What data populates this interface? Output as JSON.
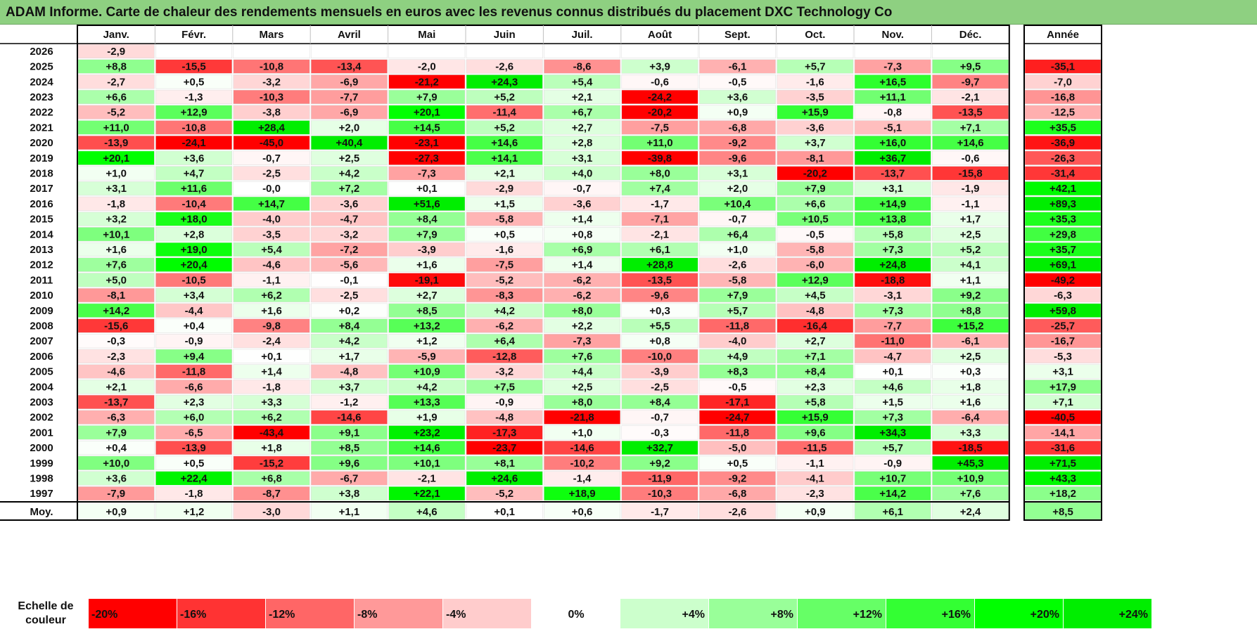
{
  "title": "ADAM Informe. Carte de chaleur des rendements mensuels en euros avec les revenus connus distribués du placement DXC Technology Co",
  "chart_data": {
    "type": "heatmap",
    "title": "ADAM Informe. Carte de chaleur des rendements mensuels en euros avec les revenus connus distribués du placement DXC Technology Co",
    "months": [
      "Janv.",
      "Févr.",
      "Mars",
      "Avril",
      "Mai",
      "Juin",
      "Juil.",
      "Août",
      "Sept.",
      "Oct.",
      "Nov.",
      "Déc."
    ],
    "year_header": "Année",
    "rows": [
      {
        "year": "2026",
        "values": [
          "-2,9",
          "",
          "",
          "",
          "",
          "",
          "",
          "",
          "",
          "",
          "",
          ""
        ],
        "annual": ""
      },
      {
        "year": "2025",
        "values": [
          "+8,8",
          "-15,5",
          "-10,8",
          "-13,4",
          "-2,0",
          "-2,6",
          "-8,6",
          "+3,9",
          "-6,1",
          "+5,7",
          "-7,3",
          "+9,5"
        ],
        "annual": "-35,1"
      },
      {
        "year": "2024",
        "values": [
          "-2,7",
          "+0,5",
          "-3,2",
          "-6,9",
          "-21,2",
          "+24,3",
          "+5,4",
          "-0,6",
          "-0,5",
          "-1,6",
          "+16,5",
          "-9,7"
        ],
        "annual": "-7,0"
      },
      {
        "year": "2023",
        "values": [
          "+6,6",
          "-1,3",
          "-10,3",
          "-7,7",
          "+7,9",
          "+5,2",
          "+2,1",
          "-24,2",
          "+3,6",
          "-3,5",
          "+11,1",
          "-2,1"
        ],
        "annual": "-16,8"
      },
      {
        "year": "2022",
        "values": [
          "-5,2",
          "+12,9",
          "-3,8",
          "-6,9",
          "+20,1",
          "-11,4",
          "+6,7",
          "-20,2",
          "+0,9",
          "+15,9",
          "-0,8",
          "-13,5"
        ],
        "annual": "-12,5"
      },
      {
        "year": "2021",
        "values": [
          "+11,0",
          "-10,8",
          "+28,4",
          "+2,0",
          "+14,5",
          "+5,2",
          "+2,7",
          "-7,5",
          "-6,8",
          "-3,6",
          "-5,1",
          "+7,1"
        ],
        "annual": "+35,5"
      },
      {
        "year": "2020",
        "values": [
          "-13,9",
          "-24,1",
          "-45,0",
          "+40,4",
          "-23,1",
          "+14,6",
          "+2,8",
          "+11,0",
          "-9,2",
          "+3,7",
          "+16,0",
          "+14,6"
        ],
        "annual": "-36,9"
      },
      {
        "year": "2019",
        "values": [
          "+20,1",
          "+3,6",
          "-0,7",
          "+2,5",
          "-27,3",
          "+14,1",
          "+3,1",
          "-39,8",
          "-9,6",
          "-8,1",
          "+36,7",
          "-0,6"
        ],
        "annual": "-26,3"
      },
      {
        "year": "2018",
        "values": [
          "+1,0",
          "+4,7",
          "-2,5",
          "+4,2",
          "-7,3",
          "+2,1",
          "+4,0",
          "+8,0",
          "+3,1",
          "-20,2",
          "-13,7",
          "-15,8"
        ],
        "annual": "-31,4"
      },
      {
        "year": "2017",
        "values": [
          "+3,1",
          "+11,6",
          "-0,0",
          "+7,2",
          "+0,1",
          "-2,9",
          "-0,7",
          "+7,4",
          "+2,0",
          "+7,9",
          "+3,1",
          "-1,9"
        ],
        "annual": "+42,1"
      },
      {
        "year": "2016",
        "values": [
          "-1,8",
          "-10,4",
          "+14,7",
          "-3,6",
          "+51,6",
          "+1,5",
          "-3,6",
          "-1,7",
          "+10,4",
          "+6,6",
          "+14,9",
          "-1,1"
        ],
        "annual": "+89,3"
      },
      {
        "year": "2015",
        "values": [
          "+3,2",
          "+18,0",
          "-4,0",
          "-4,7",
          "+8,4",
          "-5,8",
          "+1,4",
          "-7,1",
          "-0,7",
          "+10,5",
          "+13,8",
          "+1,7"
        ],
        "annual": "+35,3"
      },
      {
        "year": "2014",
        "values": [
          "+10,1",
          "+2,8",
          "-3,5",
          "-3,2",
          "+7,9",
          "+0,5",
          "+0,8",
          "-2,1",
          "+6,4",
          "-0,5",
          "+5,8",
          "+2,5"
        ],
        "annual": "+29,8"
      },
      {
        "year": "2013",
        "values": [
          "+1,6",
          "+19,0",
          "+5,4",
          "-7,2",
          "-3,9",
          "-1,6",
          "+6,9",
          "+6,1",
          "+1,0",
          "-5,8",
          "+7,3",
          "+5,2"
        ],
        "annual": "+35,7"
      },
      {
        "year": "2012",
        "values": [
          "+7,6",
          "+20,4",
          "-4,6",
          "-5,6",
          "+1,6",
          "-7,5",
          "+1,4",
          "+28,8",
          "-2,6",
          "-6,0",
          "+24,8",
          "+4,1"
        ],
        "annual": "+69,1"
      },
      {
        "year": "2011",
        "values": [
          "+5,0",
          "-10,5",
          "-1,1",
          "-0,1",
          "-19,1",
          "-5,2",
          "-6,2",
          "-13,5",
          "-5,8",
          "+12,9",
          "-18,8",
          "+1,1"
        ],
        "annual": "-49,2"
      },
      {
        "year": "2010",
        "values": [
          "-8,1",
          "+3,4",
          "+6,2",
          "-2,5",
          "+2,7",
          "-8,3",
          "-6,2",
          "-9,6",
          "+7,9",
          "+4,5",
          "-3,1",
          "+9,2"
        ],
        "annual": "-6,3"
      },
      {
        "year": "2009",
        "values": [
          "+14,2",
          "-4,4",
          "+1,6",
          "+0,2",
          "+8,5",
          "+4,2",
          "+8,0",
          "+0,3",
          "+5,7",
          "-4,8",
          "+7,3",
          "+8,8"
        ],
        "annual": "+59,8"
      },
      {
        "year": "2008",
        "values": [
          "-15,6",
          "+0,4",
          "-9,8",
          "+8,4",
          "+13,2",
          "-6,2",
          "+2,2",
          "+5,5",
          "-11,8",
          "-16,4",
          "-7,7",
          "+15,2"
        ],
        "annual": "-25,7"
      },
      {
        "year": "2007",
        "values": [
          "-0,3",
          "-0,9",
          "-2,4",
          "+4,2",
          "+1,2",
          "+6,4",
          "-7,3",
          "+0,8",
          "-4,0",
          "+2,7",
          "-11,0",
          "-6,1"
        ],
        "annual": "-16,7"
      },
      {
        "year": "2006",
        "values": [
          "-2,3",
          "+9,4",
          "+0,1",
          "+1,7",
          "-5,9",
          "-12,8",
          "+7,6",
          "-10,0",
          "+4,9",
          "+7,1",
          "-4,7",
          "+2,5"
        ],
        "annual": "-5,3"
      },
      {
        "year": "2005",
        "values": [
          "-4,6",
          "-11,8",
          "+1,4",
          "-4,8",
          "+10,9",
          "-3,2",
          "+4,4",
          "-3,9",
          "+8,3",
          "+8,4",
          "+0,1",
          "+0,3"
        ],
        "annual": "+3,1"
      },
      {
        "year": "2004",
        "values": [
          "+2,1",
          "-6,6",
          "-1,8",
          "+3,7",
          "+4,2",
          "+7,5",
          "+2,5",
          "-2,5",
          "-0,5",
          "+2,3",
          "+4,6",
          "+1,8"
        ],
        "annual": "+17,9"
      },
      {
        "year": "2003",
        "values": [
          "-13,7",
          "+2,3",
          "+3,3",
          "-1,2",
          "+13,3",
          "-0,9",
          "+8,0",
          "+8,4",
          "-17,1",
          "+5,8",
          "+1,5",
          "+1,6"
        ],
        "annual": "+7,1"
      },
      {
        "year": "2002",
        "values": [
          "-6,3",
          "+6,0",
          "+6,2",
          "-14,6",
          "+1,9",
          "-4,8",
          "-21,8",
          "-0,7",
          "-24,7",
          "+15,9",
          "+7,3",
          "-6,4"
        ],
        "annual": "-40,5"
      },
      {
        "year": "2001",
        "values": [
          "+7,9",
          "-6,5",
          "-43,4",
          "+9,1",
          "+23,2",
          "-17,3",
          "+1,0",
          "-0,3",
          "-11,8",
          "+9,6",
          "+34,3",
          "+3,3"
        ],
        "annual": "-14,1"
      },
      {
        "year": "2000",
        "values": [
          "+0,4",
          "-13,9",
          "+1,8",
          "+8,5",
          "+14,6",
          "-23,7",
          "-14,6",
          "+32,7",
          "-5,0",
          "-11,5",
          "+5,7",
          "-18,5"
        ],
        "annual": "-31,6"
      },
      {
        "year": "1999",
        "values": [
          "+10,0",
          "+0,5",
          "-15,2",
          "+9,6",
          "+10,1",
          "+8,1",
          "-10,2",
          "+9,2",
          "+0,5",
          "-1,1",
          "-0,9",
          "+45,3"
        ],
        "annual": "+71,5"
      },
      {
        "year": "1998",
        "values": [
          "+3,6",
          "+22,4",
          "+6,8",
          "-6,7",
          "-2,1",
          "+24,6",
          "-1,4",
          "-11,9",
          "-9,2",
          "-4,1",
          "+10,7",
          "+10,9"
        ],
        "annual": "+43,3"
      },
      {
        "year": "1997",
        "values": [
          "-7,9",
          "-1,8",
          "-8,7",
          "+3,8",
          "+22,1",
          "-5,2",
          "+18,9",
          "-10,3",
          "-6,8",
          "-2,3",
          "+14,2",
          "+7,6"
        ],
        "annual": "+18,2"
      }
    ],
    "average": {
      "label": "Moy.",
      "values": [
        "+0,9",
        "+1,2",
        "-3,0",
        "+1,1",
        "+4,6",
        "+0,1",
        "+0,6",
        "-1,7",
        "-2,6",
        "+0,9",
        "+6,1",
        "+2,4"
      ],
      "annual": "+8,5"
    },
    "color_scale": {
      "label": "Echelle de couleur",
      "steps": [
        {
          "label": "-20%",
          "value": -20,
          "color": "#ff0000"
        },
        {
          "label": "-16%",
          "value": -16,
          "color": "#ff3333"
        },
        {
          "label": "-12%",
          "value": -12,
          "color": "#ff6666"
        },
        {
          "label": "-8%",
          "value": -8,
          "color": "#ff9999"
        },
        {
          "label": "-4%",
          "value": -4,
          "color": "#ffcccc"
        },
        {
          "label": "0%",
          "value": 0,
          "color": "#ffffff"
        },
        {
          "label": "+4%",
          "value": 4,
          "color": "#ccffcc"
        },
        {
          "label": "+8%",
          "value": 8,
          "color": "#99ff99"
        },
        {
          "label": "+12%",
          "value": 12,
          "color": "#66ff66"
        },
        {
          "label": "+16%",
          "value": 16,
          "color": "#33ff33"
        },
        {
          "label": "+20%",
          "value": 20,
          "color": "#00ff00"
        },
        {
          "label": "+24%",
          "value": 24,
          "color": "#00ee00"
        }
      ]
    }
  }
}
